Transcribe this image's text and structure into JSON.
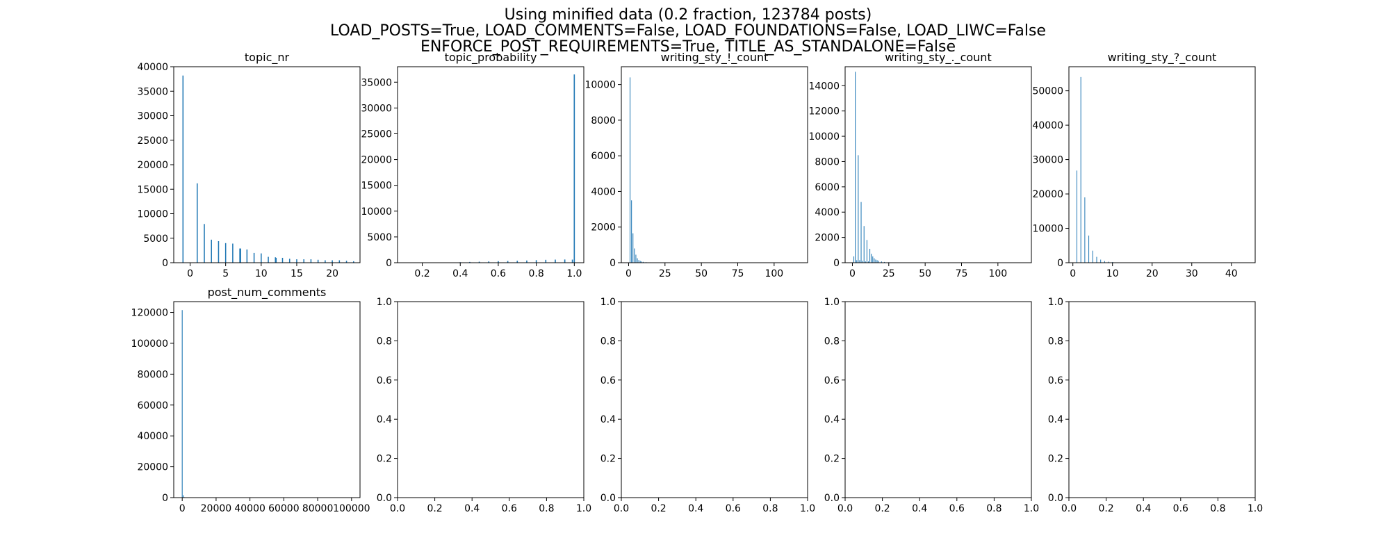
{
  "figure": {
    "title_lines": [
      "Using minified data (0.2 fraction, 123784 posts)",
      "LOAD_POSTS=True, LOAD_COMMENTS=False, LOAD_FOUNDATIONS=False, LOAD_LIWC=False",
      "ENFORCE_POST_REQUIREMENTS=True, TITLE_AS_STANDALONE=False"
    ],
    "bar_color": "#1f77b4"
  },
  "chart_data": [
    {
      "type": "bar",
      "title": "topic_nr",
      "xlim": [
        -2.3,
        23.9
      ],
      "ylim": [
        0,
        40000
      ],
      "xticks": [
        0,
        5,
        10,
        15,
        20
      ],
      "yticks": [
        0,
        5000,
        10000,
        15000,
        20000,
        25000,
        30000,
        35000,
        40000
      ],
      "bar_width": 0.15,
      "bars": [
        {
          "x": -1,
          "y": 38200
        },
        {
          "x": 1,
          "y": 16200
        },
        {
          "x": 2,
          "y": 7900
        },
        {
          "x": 3,
          "y": 4700
        },
        {
          "x": 4,
          "y": 4400
        },
        {
          "x": 5,
          "y": 4000
        },
        {
          "x": 6,
          "y": 3900
        },
        {
          "x": 7,
          "y": 2900
        },
        {
          "x": 7.1,
          "y": 2900
        },
        {
          "x": 8,
          "y": 2700
        },
        {
          "x": 9,
          "y": 2000
        },
        {
          "x": 10,
          "y": 1900
        },
        {
          "x": 11,
          "y": 1200
        },
        {
          "x": 12,
          "y": 1100
        },
        {
          "x": 12.1,
          "y": 1000
        },
        {
          "x": 13,
          "y": 1000
        },
        {
          "x": 14,
          "y": 800
        },
        {
          "x": 15,
          "y": 700
        },
        {
          "x": 16,
          "y": 700
        },
        {
          "x": 17,
          "y": 700
        },
        {
          "x": 18,
          "y": 600
        },
        {
          "x": 19,
          "y": 500
        },
        {
          "x": 20,
          "y": 500
        },
        {
          "x": 21,
          "y": 500
        },
        {
          "x": 22,
          "y": 400
        },
        {
          "x": 23,
          "y": 300
        }
      ]
    },
    {
      "type": "bar",
      "title": "topic_probability",
      "xlim": [
        0.07,
        1.05
      ],
      "ylim": [
        0,
        38000
      ],
      "xticks": [
        0.2,
        0.4,
        0.6,
        0.8,
        1.0
      ],
      "xtick_labels": [
        "0.2",
        "0.4",
        "0.6",
        "0.8",
        "1.0"
      ],
      "yticks": [
        0,
        5000,
        10000,
        15000,
        20000,
        25000,
        30000,
        35000
      ],
      "bar_width": 0.006,
      "bars": [
        {
          "x": 0.3,
          "y": 30
        },
        {
          "x": 0.35,
          "y": 60
        },
        {
          "x": 0.4,
          "y": 100
        },
        {
          "x": 0.45,
          "y": 150
        },
        {
          "x": 0.5,
          "y": 200
        },
        {
          "x": 0.55,
          "y": 250
        },
        {
          "x": 0.6,
          "y": 300
        },
        {
          "x": 0.65,
          "y": 330
        },
        {
          "x": 0.7,
          "y": 380
        },
        {
          "x": 0.75,
          "y": 430
        },
        {
          "x": 0.8,
          "y": 500
        },
        {
          "x": 0.85,
          "y": 560
        },
        {
          "x": 0.9,
          "y": 600
        },
        {
          "x": 0.95,
          "y": 620
        },
        {
          "x": 0.99,
          "y": 600
        },
        {
          "x": 1.0,
          "y": 36500
        }
      ]
    },
    {
      "type": "bar",
      "title": "writing_sty_!_count",
      "xlim": [
        -5,
        123
      ],
      "ylim": [
        0,
        11000
      ],
      "xticks": [
        0,
        25,
        50,
        75,
        100
      ],
      "yticks": [
        0,
        2000,
        4000,
        6000,
        8000,
        10000
      ],
      "bar_width": 0.5,
      "bars": [
        {
          "x": 1,
          "y": 10400
        },
        {
          "x": 2,
          "y": 3500
        },
        {
          "x": 3,
          "y": 1650
        },
        {
          "x": 4,
          "y": 800
        },
        {
          "x": 5,
          "y": 450
        },
        {
          "x": 6,
          "y": 250
        },
        {
          "x": 7,
          "y": 150
        },
        {
          "x": 8,
          "y": 100
        },
        {
          "x": 9,
          "y": 70
        },
        {
          "x": 10,
          "y": 50
        },
        {
          "x": 12,
          "y": 30
        },
        {
          "x": 15,
          "y": 20
        },
        {
          "x": 20,
          "y": 10
        }
      ]
    },
    {
      "type": "bar",
      "title": "writing_sty_._count",
      "xlim": [
        -5,
        123
      ],
      "ylim": [
        0,
        15500
      ],
      "xticks": [
        0,
        25,
        50,
        75,
        100
      ],
      "yticks": [
        0,
        2000,
        4000,
        6000,
        8000,
        10000,
        12000,
        14000
      ],
      "bar_width": 0.5,
      "bars": [
        {
          "x": 1,
          "y": 500
        },
        {
          "x": 2,
          "y": 15100
        },
        {
          "x": 3,
          "y": 200
        },
        {
          "x": 4,
          "y": 8500
        },
        {
          "x": 5,
          "y": 200
        },
        {
          "x": 6,
          "y": 4800
        },
        {
          "x": 7,
          "y": 150
        },
        {
          "x": 8,
          "y": 2900
        },
        {
          "x": 9,
          "y": 100
        },
        {
          "x": 10,
          "y": 1800
        },
        {
          "x": 11,
          "y": 100
        },
        {
          "x": 12,
          "y": 1100
        },
        {
          "x": 13,
          "y": 700
        },
        {
          "x": 14,
          "y": 500
        },
        {
          "x": 15,
          "y": 350
        },
        {
          "x": 16,
          "y": 250
        },
        {
          "x": 17,
          "y": 200
        },
        {
          "x": 18,
          "y": 150
        },
        {
          "x": 20,
          "y": 100
        },
        {
          "x": 22,
          "y": 60
        },
        {
          "x": 25,
          "y": 40
        },
        {
          "x": 30,
          "y": 20
        }
      ]
    },
    {
      "type": "bar",
      "title": "writing_sty_?_count",
      "xlim": [
        -1,
        46
      ],
      "ylim": [
        0,
        57000
      ],
      "xticks": [
        0,
        10,
        20,
        30,
        40
      ],
      "yticks": [
        0,
        10000,
        20000,
        30000,
        40000,
        50000
      ],
      "bar_width": 0.15,
      "bars": [
        {
          "x": 1,
          "y": 26800
        },
        {
          "x": 2,
          "y": 54000
        },
        {
          "x": 3,
          "y": 19000
        },
        {
          "x": 4,
          "y": 7900
        },
        {
          "x": 5,
          "y": 3500
        },
        {
          "x": 6,
          "y": 1700
        },
        {
          "x": 7,
          "y": 900
        },
        {
          "x": 8,
          "y": 500
        },
        {
          "x": 9,
          "y": 300
        },
        {
          "x": 10,
          "y": 200
        },
        {
          "x": 11,
          "y": 100
        },
        {
          "x": 12,
          "y": 60
        },
        {
          "x": 14,
          "y": 30
        }
      ]
    },
    {
      "type": "bar",
      "title": "post_num_comments",
      "xlim": [
        -5000,
        105000
      ],
      "ylim": [
        0,
        127000
      ],
      "xticks": [
        0,
        20000,
        40000,
        60000,
        80000,
        100000
      ],
      "yticks": [
        0,
        20000,
        40000,
        60000,
        80000,
        100000,
        120000
      ],
      "bar_width": 450,
      "bars": [
        {
          "x": 0,
          "y": 121500
        },
        {
          "x": 600,
          "y": 1500
        },
        {
          "x": 1200,
          "y": 300
        }
      ]
    },
    {
      "type": "empty",
      "title": "",
      "xlim": [
        0,
        1
      ],
      "ylim": [
        0,
        1
      ],
      "xticks": [
        0,
        0.2,
        0.4,
        0.6,
        0.8,
        1.0
      ],
      "xtick_labels": [
        "0.0",
        "0.2",
        "0.4",
        "0.6",
        "0.8",
        "1.0"
      ],
      "yticks": [
        0,
        0.2,
        0.4,
        0.6,
        0.8,
        1.0
      ],
      "ytick_labels": [
        "0.0",
        "0.2",
        "0.4",
        "0.6",
        "0.8",
        "1.0"
      ]
    },
    {
      "type": "empty",
      "title": "",
      "xlim": [
        0,
        1
      ],
      "ylim": [
        0,
        1
      ],
      "xticks": [
        0,
        0.2,
        0.4,
        0.6,
        0.8,
        1.0
      ],
      "xtick_labels": [
        "0.0",
        "0.2",
        "0.4",
        "0.6",
        "0.8",
        "1.0"
      ],
      "yticks": [
        0,
        0.2,
        0.4,
        0.6,
        0.8,
        1.0
      ],
      "ytick_labels": [
        "0.0",
        "0.2",
        "0.4",
        "0.6",
        "0.8",
        "1.0"
      ]
    },
    {
      "type": "empty",
      "title": "",
      "xlim": [
        0,
        1
      ],
      "ylim": [
        0,
        1
      ],
      "xticks": [
        0,
        0.2,
        0.4,
        0.6,
        0.8,
        1.0
      ],
      "xtick_labels": [
        "0.0",
        "0.2",
        "0.4",
        "0.6",
        "0.8",
        "1.0"
      ],
      "yticks": [
        0,
        0.2,
        0.4,
        0.6,
        0.8,
        1.0
      ],
      "ytick_labels": [
        "0.0",
        "0.2",
        "0.4",
        "0.6",
        "0.8",
        "1.0"
      ]
    },
    {
      "type": "empty",
      "title": "",
      "xlim": [
        0,
        1
      ],
      "ylim": [
        0,
        1
      ],
      "xticks": [
        0,
        0.2,
        0.4,
        0.6,
        0.8,
        1.0
      ],
      "xtick_labels": [
        "0.0",
        "0.2",
        "0.4",
        "0.6",
        "0.8",
        "1.0"
      ],
      "yticks": [
        0,
        0.2,
        0.4,
        0.6,
        0.8,
        1.0
      ],
      "ytick_labels": [
        "0.0",
        "0.2",
        "0.4",
        "0.6",
        "0.8",
        "1.0"
      ]
    }
  ]
}
